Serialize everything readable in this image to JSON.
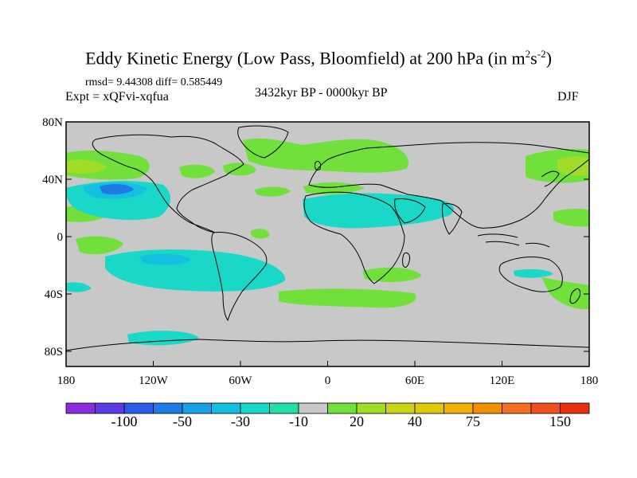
{
  "title": {
    "main": "Eddy Kinetic Energy (Low Pass, Bloomfield) at 200 hPa (in m",
    "unit_sup1": "2",
    "unit_s": "s",
    "unit_sup2": "-2",
    "close": ")"
  },
  "stats": "rmsd= 9.44308 diff= 0.585449",
  "experiment": "Expt = xQFvi-xqfua",
  "period": "3432kyr BP - 0000kyr BP",
  "season": "DJF",
  "axes": {
    "lon_ticks": [
      "180",
      "120W",
      "60W",
      "0",
      "60E",
      "120E",
      "180"
    ],
    "lat_ticks": [
      "80N",
      "40N",
      "0",
      "40S",
      "80S"
    ]
  },
  "colorbar": {
    "colors": [
      "#8a2be2",
      "#5a3ce6",
      "#2c5be6",
      "#1e7be6",
      "#18a0e6",
      "#15bfe0",
      "#19d8c8",
      "#20e0a8",
      "#c8c8c8",
      "#72e03a",
      "#a0dc28",
      "#c8d414",
      "#e0c80a",
      "#f0b000",
      "#f09000",
      "#f07020",
      "#f05020",
      "#e63010"
    ],
    "labels": [
      "-100",
      "-50",
      "-30",
      "-10",
      "20",
      "40",
      "75",
      "150"
    ]
  },
  "map": {
    "background": "#c8c8c8",
    "positive_color": "#72e03a",
    "negative_color": "#19d8c8",
    "strong_negative_color": "#15bfe0",
    "strong_positive_color": "#a0dc28"
  }
}
